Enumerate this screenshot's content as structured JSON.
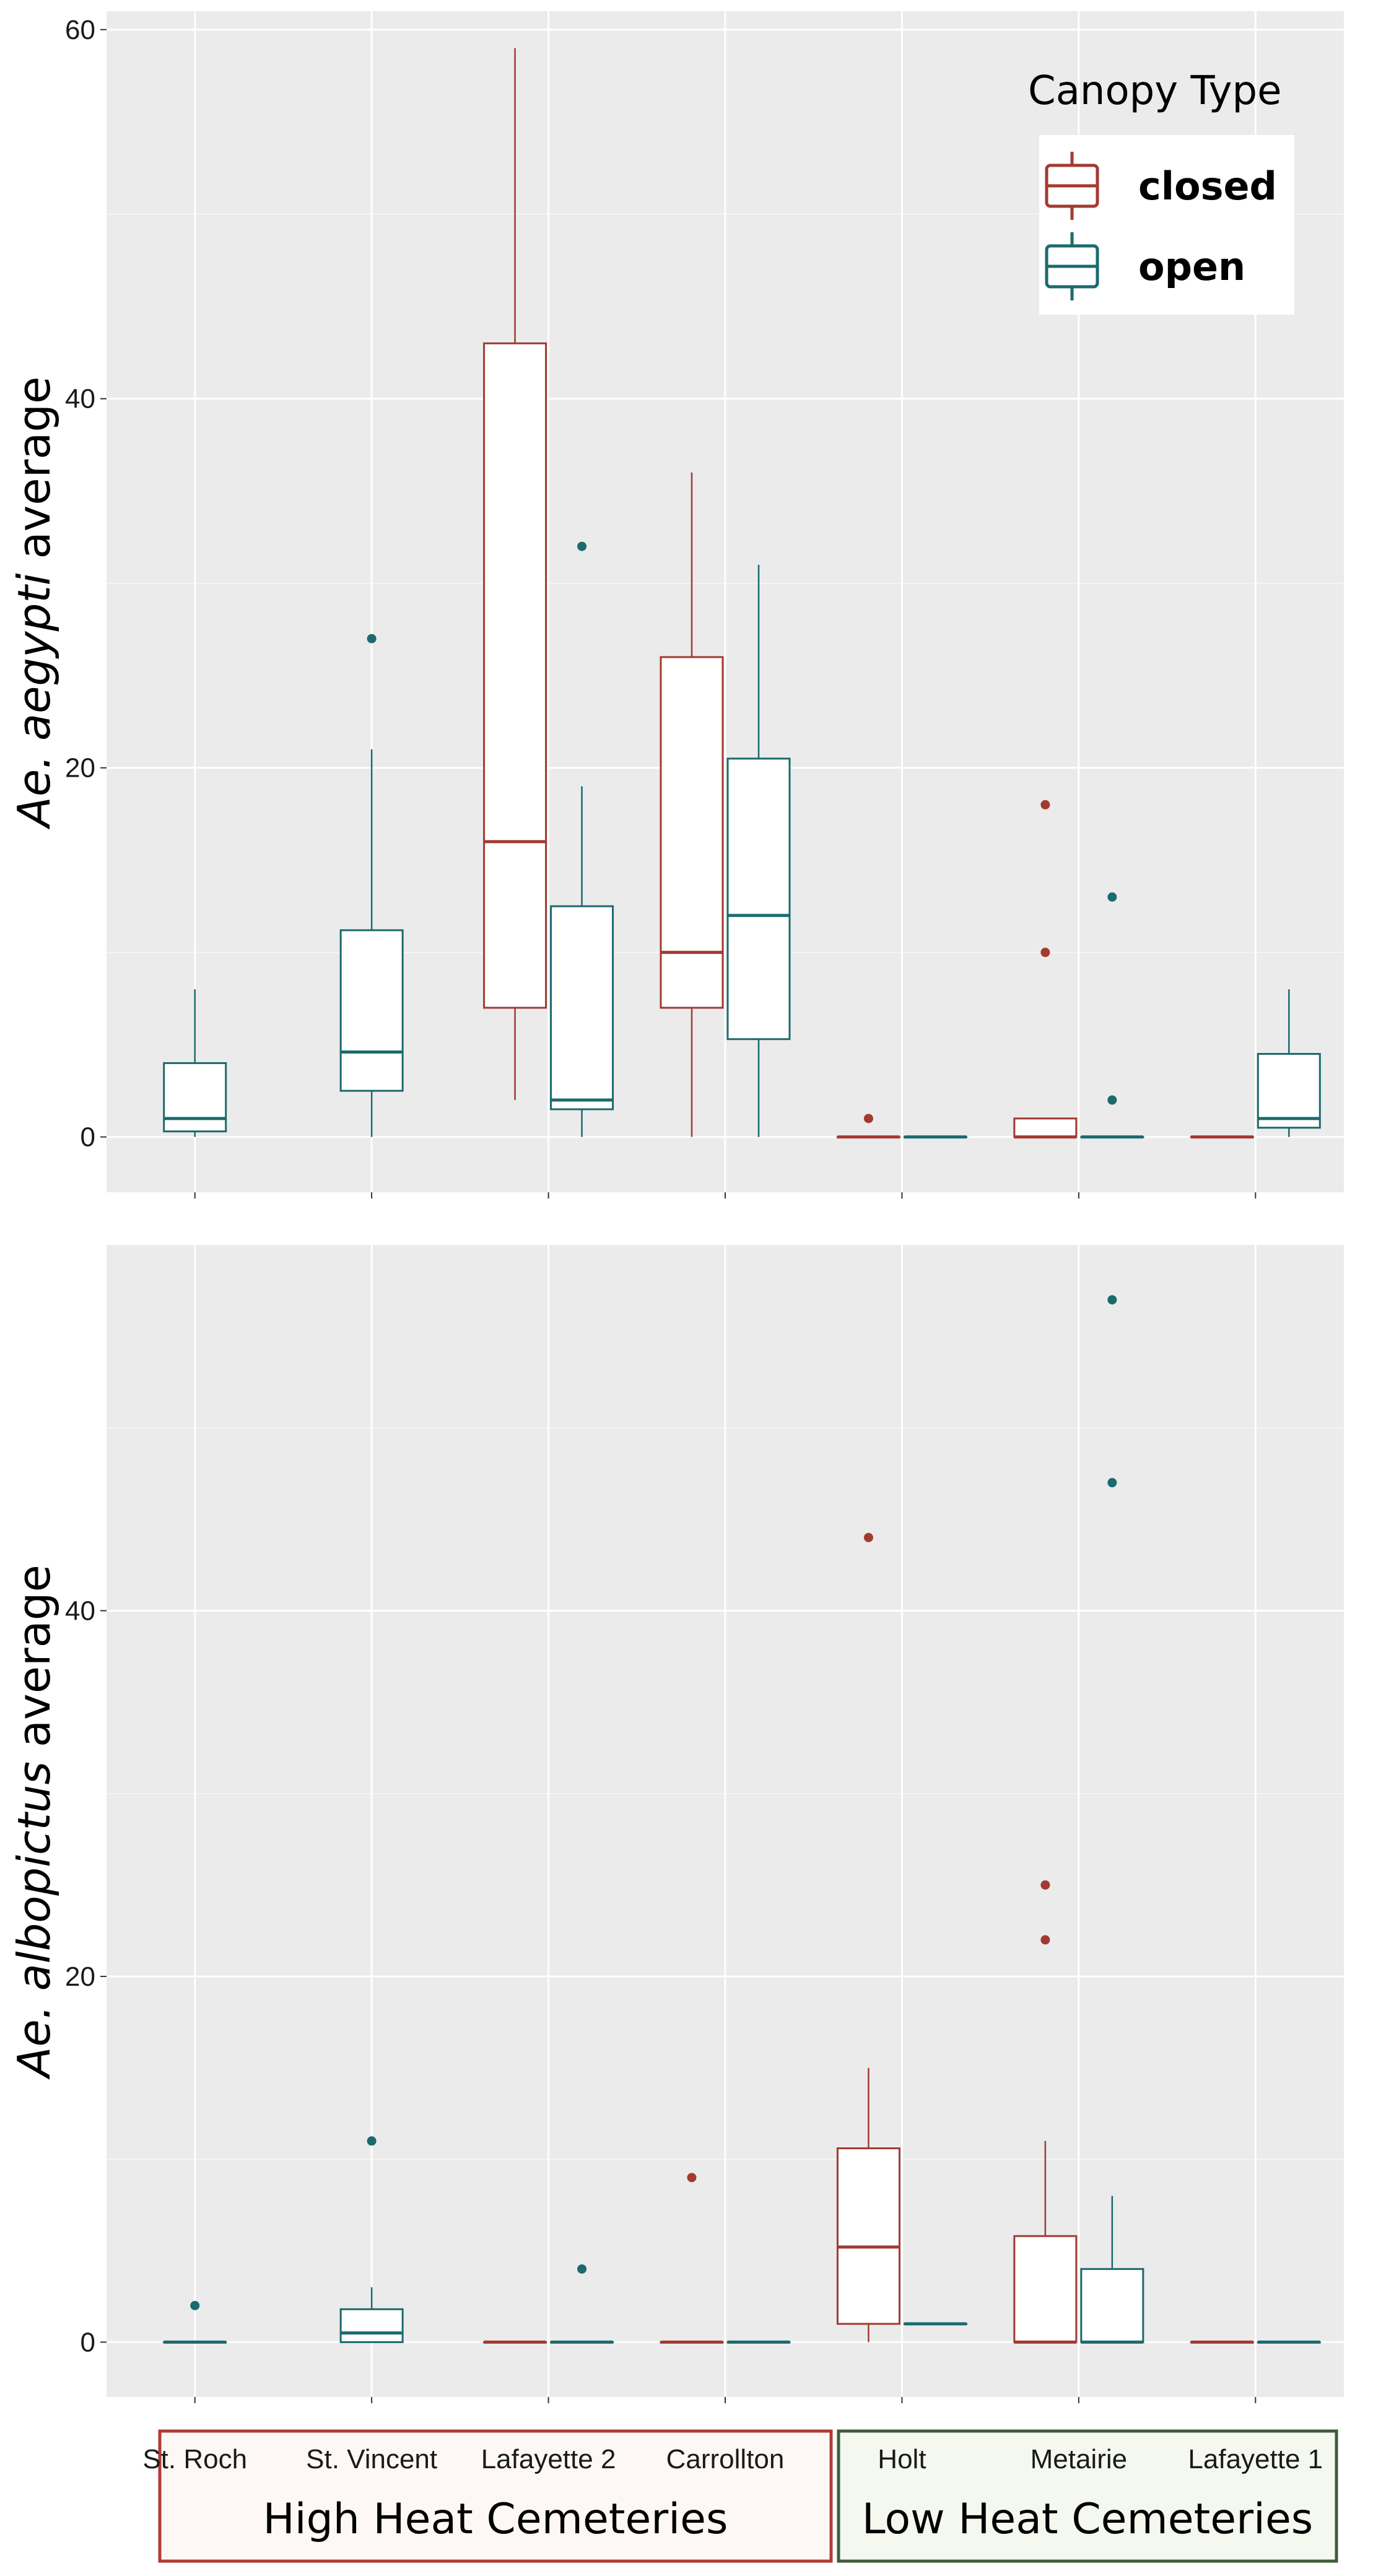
{
  "chart_data": [
    {
      "type": "boxplot",
      "ylabel_italic": "Ae. aegypti",
      "ylabel_rest": " average",
      "ylim": [
        -3,
        61
      ],
      "yticks": [
        0,
        20,
        40,
        60
      ],
      "categories": [
        "St. Roch",
        "St. Vincent",
        "Lafayette 2",
        "Carrollton",
        "Holt",
        "Metairie",
        "Lafayette 1"
      ],
      "boxes": [
        {
          "category": "St. Roch",
          "canopy": "open",
          "min": 0,
          "q1": 0.3,
          "median": 1,
          "q3": 4,
          "max": 8,
          "outliers": []
        },
        {
          "category": "St. Vincent",
          "canopy": "open",
          "min": 0,
          "q1": 2.5,
          "median": 4.6,
          "q3": 11.2,
          "max": 21,
          "outliers": [
            27
          ]
        },
        {
          "category": "Lafayette 2",
          "canopy": "closed",
          "min": 2,
          "q1": 7,
          "median": 16,
          "q3": 43,
          "max": 59,
          "outliers": []
        },
        {
          "category": "Lafayette 2",
          "canopy": "open",
          "min": 0,
          "q1": 1.5,
          "median": 2,
          "q3": 12.5,
          "max": 19,
          "outliers": [
            32
          ]
        },
        {
          "category": "Carrollton",
          "canopy": "closed",
          "min": 0,
          "q1": 7,
          "median": 10,
          "q3": 26,
          "max": 36,
          "outliers": []
        },
        {
          "category": "Carrollton",
          "canopy": "open",
          "min": 0,
          "q1": 5.3,
          "median": 12,
          "q3": 20.5,
          "max": 31,
          "outliers": []
        },
        {
          "category": "Holt",
          "canopy": "closed",
          "min": 0,
          "q1": 0,
          "median": 0,
          "q3": 0,
          "max": 0,
          "outliers": [
            1
          ]
        },
        {
          "category": "Holt",
          "canopy": "open",
          "min": 0,
          "q1": 0,
          "median": 0,
          "q3": 0,
          "max": 0,
          "outliers": []
        },
        {
          "category": "Metairie",
          "canopy": "closed",
          "min": 0,
          "q1": 0,
          "median": 0,
          "q3": 1,
          "max": 1,
          "outliers": [
            10,
            18
          ]
        },
        {
          "category": "Metairie",
          "canopy": "open",
          "min": 0,
          "q1": 0,
          "median": 0,
          "q3": 0,
          "max": 0,
          "outliers": [
            2,
            13
          ]
        },
        {
          "category": "Lafayette 1",
          "canopy": "closed",
          "min": 0,
          "q1": 0,
          "median": 0,
          "q3": 0,
          "max": 0,
          "outliers": []
        },
        {
          "category": "Lafayette 1",
          "canopy": "open",
          "min": 0,
          "q1": 0.5,
          "median": 1,
          "q3": 4.5,
          "max": 8,
          "outliers": []
        }
      ]
    },
    {
      "type": "boxplot",
      "ylabel_italic": "Ae. albopictus",
      "ylabel_rest": " average",
      "ylim": [
        -3,
        60
      ],
      "yticks": [
        0,
        20,
        40
      ],
      "categories": [
        "St. Roch",
        "St. Vincent",
        "Lafayette 2",
        "Carrollton",
        "Holt",
        "Metairie",
        "Lafayette 1"
      ],
      "boxes": [
        {
          "category": "St. Roch",
          "canopy": "open",
          "min": 0,
          "q1": 0,
          "median": 0,
          "q3": 0,
          "max": 0,
          "outliers": [
            2
          ]
        },
        {
          "category": "St. Vincent",
          "canopy": "open",
          "min": 0,
          "q1": 0,
          "median": 0.5,
          "q3": 1.8,
          "max": 3,
          "outliers": [
            11
          ]
        },
        {
          "category": "Lafayette 2",
          "canopy": "closed",
          "min": 0,
          "q1": 0,
          "median": 0,
          "q3": 0,
          "max": 0,
          "outliers": []
        },
        {
          "category": "Lafayette 2",
          "canopy": "open",
          "min": 0,
          "q1": 0,
          "median": 0,
          "q3": 0,
          "max": 0,
          "outliers": [
            4
          ]
        },
        {
          "category": "Carrollton",
          "canopy": "closed",
          "min": 0,
          "q1": 0,
          "median": 0,
          "q3": 0,
          "max": 0,
          "outliers": [
            9
          ]
        },
        {
          "category": "Carrollton",
          "canopy": "open",
          "min": 0,
          "q1": 0,
          "median": 0,
          "q3": 0,
          "max": 0,
          "outliers": []
        },
        {
          "category": "Holt",
          "canopy": "closed",
          "min": 0,
          "q1": 1,
          "median": 5.2,
          "q3": 10.6,
          "max": 15,
          "outliers": [
            44
          ]
        },
        {
          "category": "Holt",
          "canopy": "open",
          "min": 1,
          "q1": 1,
          "median": 1,
          "q3": 1,
          "max": 1,
          "outliers": []
        },
        {
          "category": "Metairie",
          "canopy": "closed",
          "min": 0,
          "q1": 0,
          "median": 0,
          "q3": 5.8,
          "max": 11,
          "outliers": [
            22,
            25
          ]
        },
        {
          "category": "Metairie",
          "canopy": "open",
          "min": 0,
          "q1": 0,
          "median": 0,
          "q3": 4,
          "max": 8,
          "outliers": [
            47,
            57
          ]
        },
        {
          "category": "Lafayette 1",
          "canopy": "closed",
          "min": 0,
          "q1": 0,
          "median": 0,
          "q3": 0,
          "max": 0,
          "outliers": []
        },
        {
          "category": "Lafayette 1",
          "canopy": "open",
          "min": 0,
          "q1": 0,
          "median": 0,
          "q3": 0,
          "max": 0,
          "outliers": []
        }
      ]
    }
  ],
  "legend": {
    "title": "Canopy Type",
    "items": [
      {
        "label": "closed",
        "color": "#a23a32"
      },
      {
        "label": "open",
        "color": "#1b6a6d"
      }
    ]
  },
  "groups": [
    {
      "label": "High Heat Cemeteries",
      "border": "#b23a36",
      "fill": "#fdf8f5",
      "categories": [
        "St. Roch",
        "St. Vincent",
        "Lafayette 2",
        "Carrollton"
      ]
    },
    {
      "label": "Low Heat Cemeteries",
      "border": "#3f5b3a",
      "fill": "#f4f8ef",
      "categories": [
        "Holt",
        "Metairie",
        "Lafayette 1"
      ]
    }
  ],
  "colors": {
    "closed": "#a23a32",
    "open": "#1b6a6d",
    "panel_bg": "#ebebeb",
    "grid": "#ffffff"
  }
}
